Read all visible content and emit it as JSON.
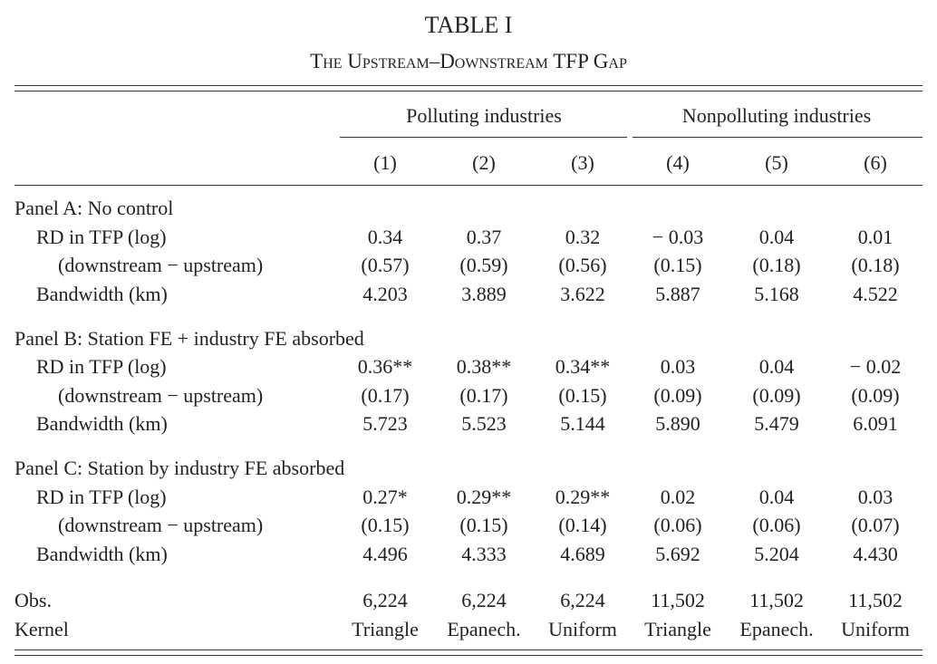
{
  "title": "TABLE I",
  "subtitle": "The Upstream–Downstream TFP Gap",
  "table": {
    "column_groups": [
      "Polluting industries",
      "Nonpolluting industries"
    ],
    "columns": [
      "(1)",
      "(2)",
      "(3)",
      "(4)",
      "(5)",
      "(6)"
    ],
    "panels": [
      {
        "title": "Panel A: No control",
        "rows": [
          {
            "label": "RD in TFP (log)",
            "cells": [
              "0.34",
              "0.37",
              "0.32",
              "− 0.03",
              "0.04",
              "0.01"
            ]
          },
          {
            "label": "(downstream − upstream)",
            "cells": [
              "(0.57)",
              "(0.59)",
              "(0.56)",
              "(0.15)",
              "(0.18)",
              "(0.18)"
            ]
          },
          {
            "label": "Bandwidth (km)",
            "cells": [
              "4.203",
              "3.889",
              "3.622",
              "5.887",
              "5.168",
              "4.522"
            ]
          }
        ]
      },
      {
        "title": "Panel B: Station FE + industry FE absorbed",
        "rows": [
          {
            "label": "RD in TFP (log)",
            "cells": [
              "0.36**",
              "0.38**",
              "0.34**",
              "0.03",
              "0.04",
              "− 0.02"
            ]
          },
          {
            "label": "(downstream − upstream)",
            "cells": [
              "(0.17)",
              "(0.17)",
              "(0.15)",
              "(0.09)",
              "(0.09)",
              "(0.09)"
            ]
          },
          {
            "label": "Bandwidth (km)",
            "cells": [
              "5.723",
              "5.523",
              "5.144",
              "5.890",
              "5.479",
              "6.091"
            ]
          }
        ]
      },
      {
        "title": "Panel C: Station by industry FE absorbed",
        "rows": [
          {
            "label": "RD in TFP (log)",
            "cells": [
              "0.27*",
              "0.29**",
              "0.29**",
              "0.02",
              "0.04",
              "0.03"
            ]
          },
          {
            "label": "(downstream − upstream)",
            "cells": [
              "(0.15)",
              "(0.15)",
              "(0.14)",
              "(0.06)",
              "(0.06)",
              "(0.07)"
            ]
          },
          {
            "label": "Bandwidth (km)",
            "cells": [
              "4.496",
              "4.333",
              "4.689",
              "5.692",
              "5.204",
              "4.430"
            ]
          }
        ]
      }
    ],
    "footer_rows": [
      {
        "label": "Obs.",
        "cells": [
          "6,224",
          "6,224",
          "6,224",
          "11,502",
          "11,502",
          "11,502"
        ]
      },
      {
        "label": "Kernel",
        "cells": [
          "Triangle",
          "Epanech.",
          "Uniform",
          "Triangle",
          "Epanech.",
          "Uniform"
        ]
      }
    ]
  }
}
